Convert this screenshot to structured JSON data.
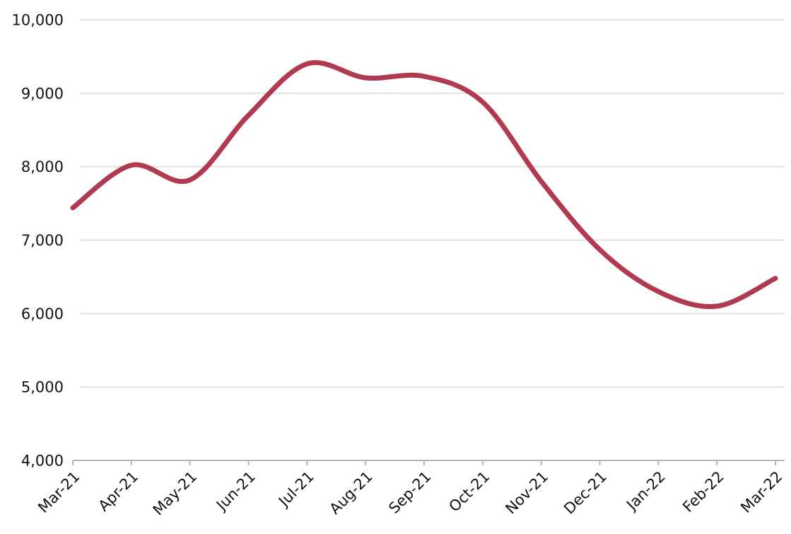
{
  "chart_data": {
    "type": "line",
    "title": "",
    "xlabel": "",
    "ylabel": "",
    "categories": [
      "Mar-21",
      "Apr-21",
      "May-21",
      "Jun-21",
      "Jul-21",
      "Aug-21",
      "Sep-21",
      "Oct-21",
      "Nov-21",
      "Dec-21",
      "Jan-22",
      "Feb-22",
      "Mar-22"
    ],
    "series": [
      {
        "name": "series-1",
        "values": [
          7440,
          8020,
          7820,
          8700,
          9400,
          9210,
          9230,
          8880,
          7800,
          6870,
          6300,
          6100,
          6480
        ]
      }
    ],
    "ylim": [
      4000,
      10000
    ],
    "y_tick_step": 1000,
    "y_ticks": [
      {
        "value": 10000,
        "label": "10,000"
      },
      {
        "value": 9000,
        "label": "9,000"
      },
      {
        "value": 8000,
        "label": "8,000"
      },
      {
        "value": 7000,
        "label": "7,000"
      },
      {
        "value": 6000,
        "label": "6,000"
      },
      {
        "value": 5000,
        "label": "5,000"
      },
      {
        "value": 4000,
        "label": "4,000"
      }
    ],
    "grid": "horizontal",
    "legend": "none",
    "smoothing": "spline",
    "x_label_rotation_deg": -45,
    "colors": {
      "line": "#b23a50",
      "gridline": "#dadada",
      "axis_line": "#b3b3b3",
      "tick_mark": "#b3b3b3",
      "text": "#111111",
      "background": "#ffffff"
    }
  }
}
